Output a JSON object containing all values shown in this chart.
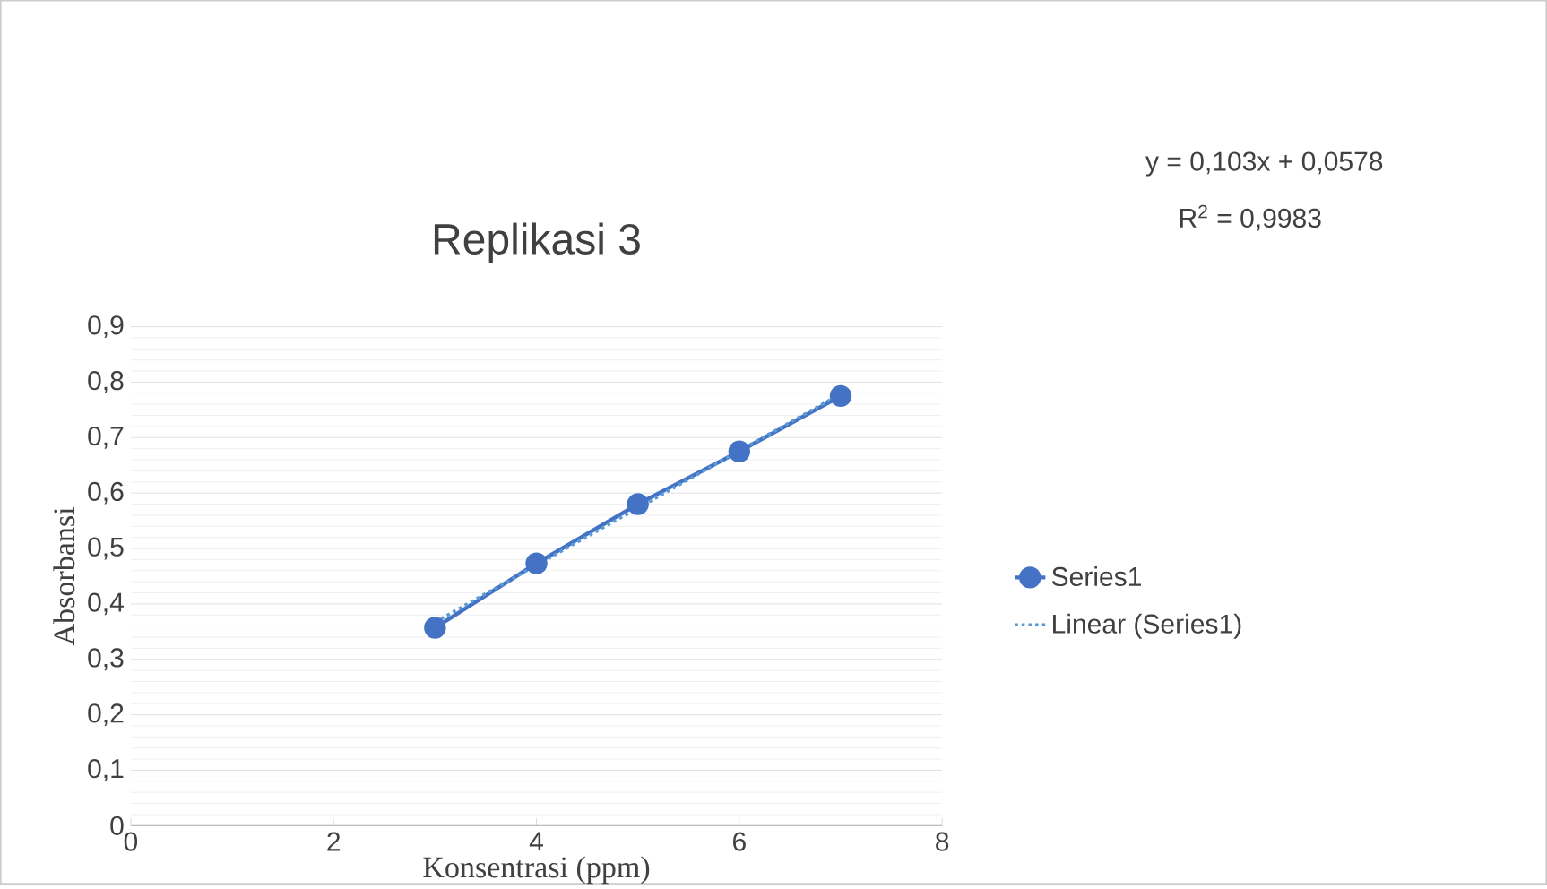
{
  "chart_data": {
    "type": "line",
    "title": "Replikasi 3",
    "xlabel": "Konsentrasi (ppm)",
    "ylabel": "Absorbansi",
    "series": [
      {
        "name": "Series1",
        "color": "#4472c4",
        "x": [
          3,
          4,
          5,
          6,
          7
        ],
        "values": [
          0.357,
          0.473,
          0.58,
          0.675,
          0.775
        ],
        "marker": "circle",
        "line_style": "solid"
      },
      {
        "name": "Linear (Series1)",
        "color": "#5b9bd5",
        "x": [
          3,
          7
        ],
        "values": [
          0.367,
          0.779
        ],
        "marker": "none",
        "line_style": "dotted"
      }
    ],
    "xlim": [
      0,
      8
    ],
    "xticks": [
      0,
      2,
      4,
      6,
      8
    ],
    "ylim": [
      0,
      0.9
    ],
    "yticks": [
      {
        "value": 0,
        "label": "0"
      },
      {
        "value": 0.1,
        "label": "0,1"
      },
      {
        "value": 0.2,
        "label": "0,2"
      },
      {
        "value": 0.3,
        "label": "0,3"
      },
      {
        "value": 0.4,
        "label": "0,4"
      },
      {
        "value": 0.5,
        "label": "0,5"
      },
      {
        "value": 0.6,
        "label": "0,6"
      },
      {
        "value": 0.7,
        "label": "0,7"
      },
      {
        "value": 0.8,
        "label": "0,8"
      },
      {
        "value": 0.9,
        "label": "0,9"
      }
    ],
    "grid": "y",
    "legend": "right",
    "annotations": [
      "y = 0,103x + 0,0578",
      "R$^{2}$ = 0,9983"
    ]
  }
}
